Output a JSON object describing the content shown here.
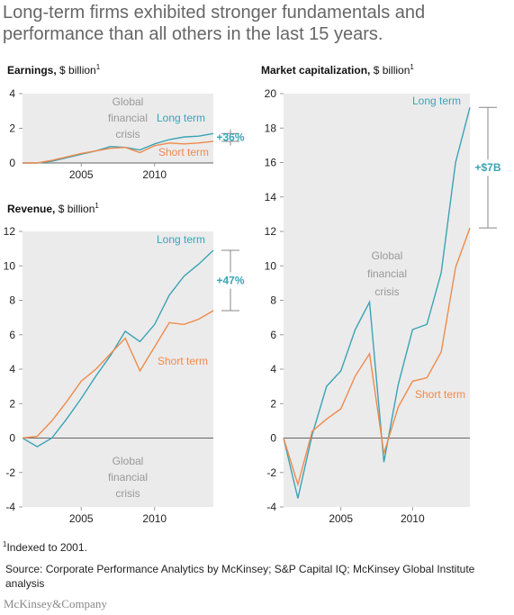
{
  "headline": "Long-term firms exhibited stronger fundamentals and performance than all others in the last 15 years.",
  "footnote": {
    "marker": "1",
    "text": "Indexed to 2001."
  },
  "source": "Source: Corporate Performance Analytics by McKinsey; S&P Capital IQ; McKinsey Global Institute analysis",
  "brand": "McKinsey&Company",
  "colors": {
    "long_term": "#3aa3b5",
    "short_term": "#ef8a4c",
    "panel_bg": "#ebebeb",
    "muted_text": "#999999",
    "badge": "#3aa3b5"
  },
  "chart_data": [
    {
      "id": "earnings",
      "type": "line",
      "title_bold": "Earnings,",
      "title_rest": " $ billion",
      "title_sup": "1",
      "x": [
        2001,
        2002,
        2003,
        2004,
        2005,
        2006,
        2007,
        2008,
        2009,
        2010,
        2011,
        2012,
        2013,
        2014
      ],
      "series": [
        {
          "name": "Long term",
          "color": "#3aa3b5",
          "values": [
            0,
            0,
            0.1,
            0.3,
            0.5,
            0.7,
            0.95,
            0.9,
            0.75,
            1.1,
            1.35,
            1.5,
            1.55,
            1.7
          ]
        },
        {
          "name": "Short term",
          "color": "#ef8a4c",
          "values": [
            0,
            0,
            0.15,
            0.35,
            0.55,
            0.7,
            0.85,
            0.9,
            0.6,
            1.0,
            1.15,
            1.1,
            1.15,
            1.25
          ]
        }
      ],
      "yticks": [
        0,
        2,
        4
      ],
      "ylim": [
        0,
        4
      ],
      "xticks": [
        2005,
        2010
      ],
      "xlim": [
        2001,
        2014
      ],
      "annotation": [
        "Global",
        "financial",
        "crisis"
      ],
      "delta_label": "+36%"
    },
    {
      "id": "revenue",
      "type": "line",
      "title_bold": "Revenue,",
      "title_rest": " $ billion",
      "title_sup": "1",
      "x": [
        2001,
        2002,
        2003,
        2004,
        2005,
        2006,
        2007,
        2008,
        2009,
        2010,
        2011,
        2012,
        2013,
        2014
      ],
      "series": [
        {
          "name": "Long term",
          "color": "#3aa3b5",
          "values": [
            0,
            -0.5,
            0,
            1.1,
            2.3,
            3.6,
            4.8,
            6.2,
            5.6,
            6.6,
            8.3,
            9.4,
            10.1,
            10.9
          ]
        },
        {
          "name": "Short term",
          "color": "#ef8a4c",
          "values": [
            0,
            0.1,
            1.0,
            2.1,
            3.3,
            4.0,
            4.9,
            5.8,
            3.9,
            5.3,
            6.7,
            6.6,
            6.9,
            7.4
          ]
        }
      ],
      "yticks": [
        -4,
        -2,
        0,
        2,
        4,
        6,
        8,
        10,
        12
      ],
      "ylim": [
        -4,
        12
      ],
      "xticks": [
        2005,
        2010
      ],
      "xlim": [
        2001,
        2014
      ],
      "annotation": [
        "Global",
        "financial",
        "crisis"
      ],
      "delta_label": "+47%"
    },
    {
      "id": "market_cap",
      "type": "line",
      "title_bold": "Market capitalization,",
      "title_rest": " $ billion",
      "title_sup": "1",
      "x": [
        2001,
        2002,
        2003,
        2004,
        2005,
        2006,
        2007,
        2008,
        2009,
        2010,
        2011,
        2012,
        2013,
        2014
      ],
      "series": [
        {
          "name": "Long term",
          "color": "#3aa3b5",
          "values": [
            0,
            -3.5,
            0.2,
            3.0,
            3.9,
            6.3,
            7.9,
            -1.4,
            3.1,
            6.3,
            6.6,
            9.6,
            16.0,
            19.2
          ]
        },
        {
          "name": "Short term",
          "color": "#ef8a4c",
          "values": [
            0,
            -2.7,
            0.4,
            1.1,
            1.7,
            3.6,
            4.9,
            -0.9,
            1.8,
            3.3,
            3.5,
            5.0,
            9.9,
            12.2
          ]
        }
      ],
      "yticks": [
        -4,
        -2,
        0,
        2,
        4,
        6,
        8,
        10,
        12,
        14,
        16,
        18,
        20
      ],
      "ylim": [
        -4,
        20
      ],
      "xticks": [
        2005,
        2010
      ],
      "xlim": [
        2001,
        2014
      ],
      "annotation": [
        "Global",
        "financial",
        "crisis"
      ],
      "delta_label": "+$7B"
    }
  ]
}
